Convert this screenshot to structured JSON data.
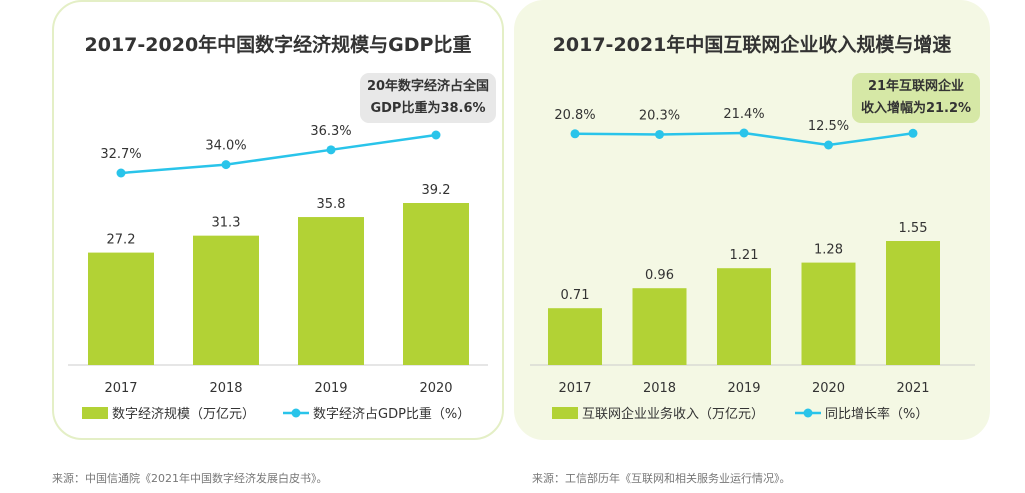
{
  "left_panel": {
    "title": "2017-2020年中国数字经济规模与GDP比重",
    "callout_lines": [
      "20年数字经济占全国",
      "GDP比重为38.6%"
    ]
  },
  "right_panel": {
    "title": "2017-2021年中国互联网企业收入规模与增速",
    "callout_lines": [
      "21年互联网企业",
      "收入增幅为21.2%"
    ]
  },
  "footer": {
    "source_left": "来源：中国信通院《2021年中国数字经济发展白皮书》。",
    "source_right": "来源：工信部历年《互联网和相关服务业运行情况》。"
  },
  "colors": {
    "bar": "#b2d235",
    "line": "#29c4ea",
    "text": "#333333",
    "axis": "#cccccc"
  },
  "chart_data": [
    {
      "type": "bar",
      "title": "2017-2020年中国数字经济规模与GDP比重",
      "categories": [
        "2017",
        "2018",
        "2019",
        "2020"
      ],
      "series": [
        {
          "name": "数字经济规模（万亿元）",
          "type": "bar",
          "values": [
            27.2,
            31.3,
            35.8,
            39.2
          ],
          "labels": [
            "27.2",
            "31.3",
            "35.8",
            "39.2"
          ]
        },
        {
          "name": "数字经济占GDP比重（%）",
          "type": "line",
          "values": [
            32.7,
            34.0,
            36.3,
            38.6
          ],
          "labels": [
            "32.7%",
            "34.0%",
            "36.3%",
            ""
          ]
        }
      ],
      "legend_position": "bottom",
      "grid": false
    },
    {
      "type": "bar",
      "title": "2017-2021年中国互联网企业收入规模与增速",
      "categories": [
        "2017",
        "2018",
        "2019",
        "2020",
        "2021"
      ],
      "series": [
        {
          "name": "互联网企业业务收入（万亿元）",
          "type": "bar",
          "values": [
            0.71,
            0.96,
            1.21,
            1.28,
            1.55
          ],
          "labels": [
            "0.71",
            "0.96",
            "1.21",
            "1.28",
            "1.55"
          ]
        },
        {
          "name": "同比增长率（%）",
          "type": "line",
          "values": [
            20.8,
            20.3,
            21.4,
            12.5,
            21.2
          ],
          "labels": [
            "20.8%",
            "20.3%",
            "21.4%",
            "12.5%",
            ""
          ]
        }
      ],
      "legend_position": "bottom",
      "grid": false
    }
  ]
}
